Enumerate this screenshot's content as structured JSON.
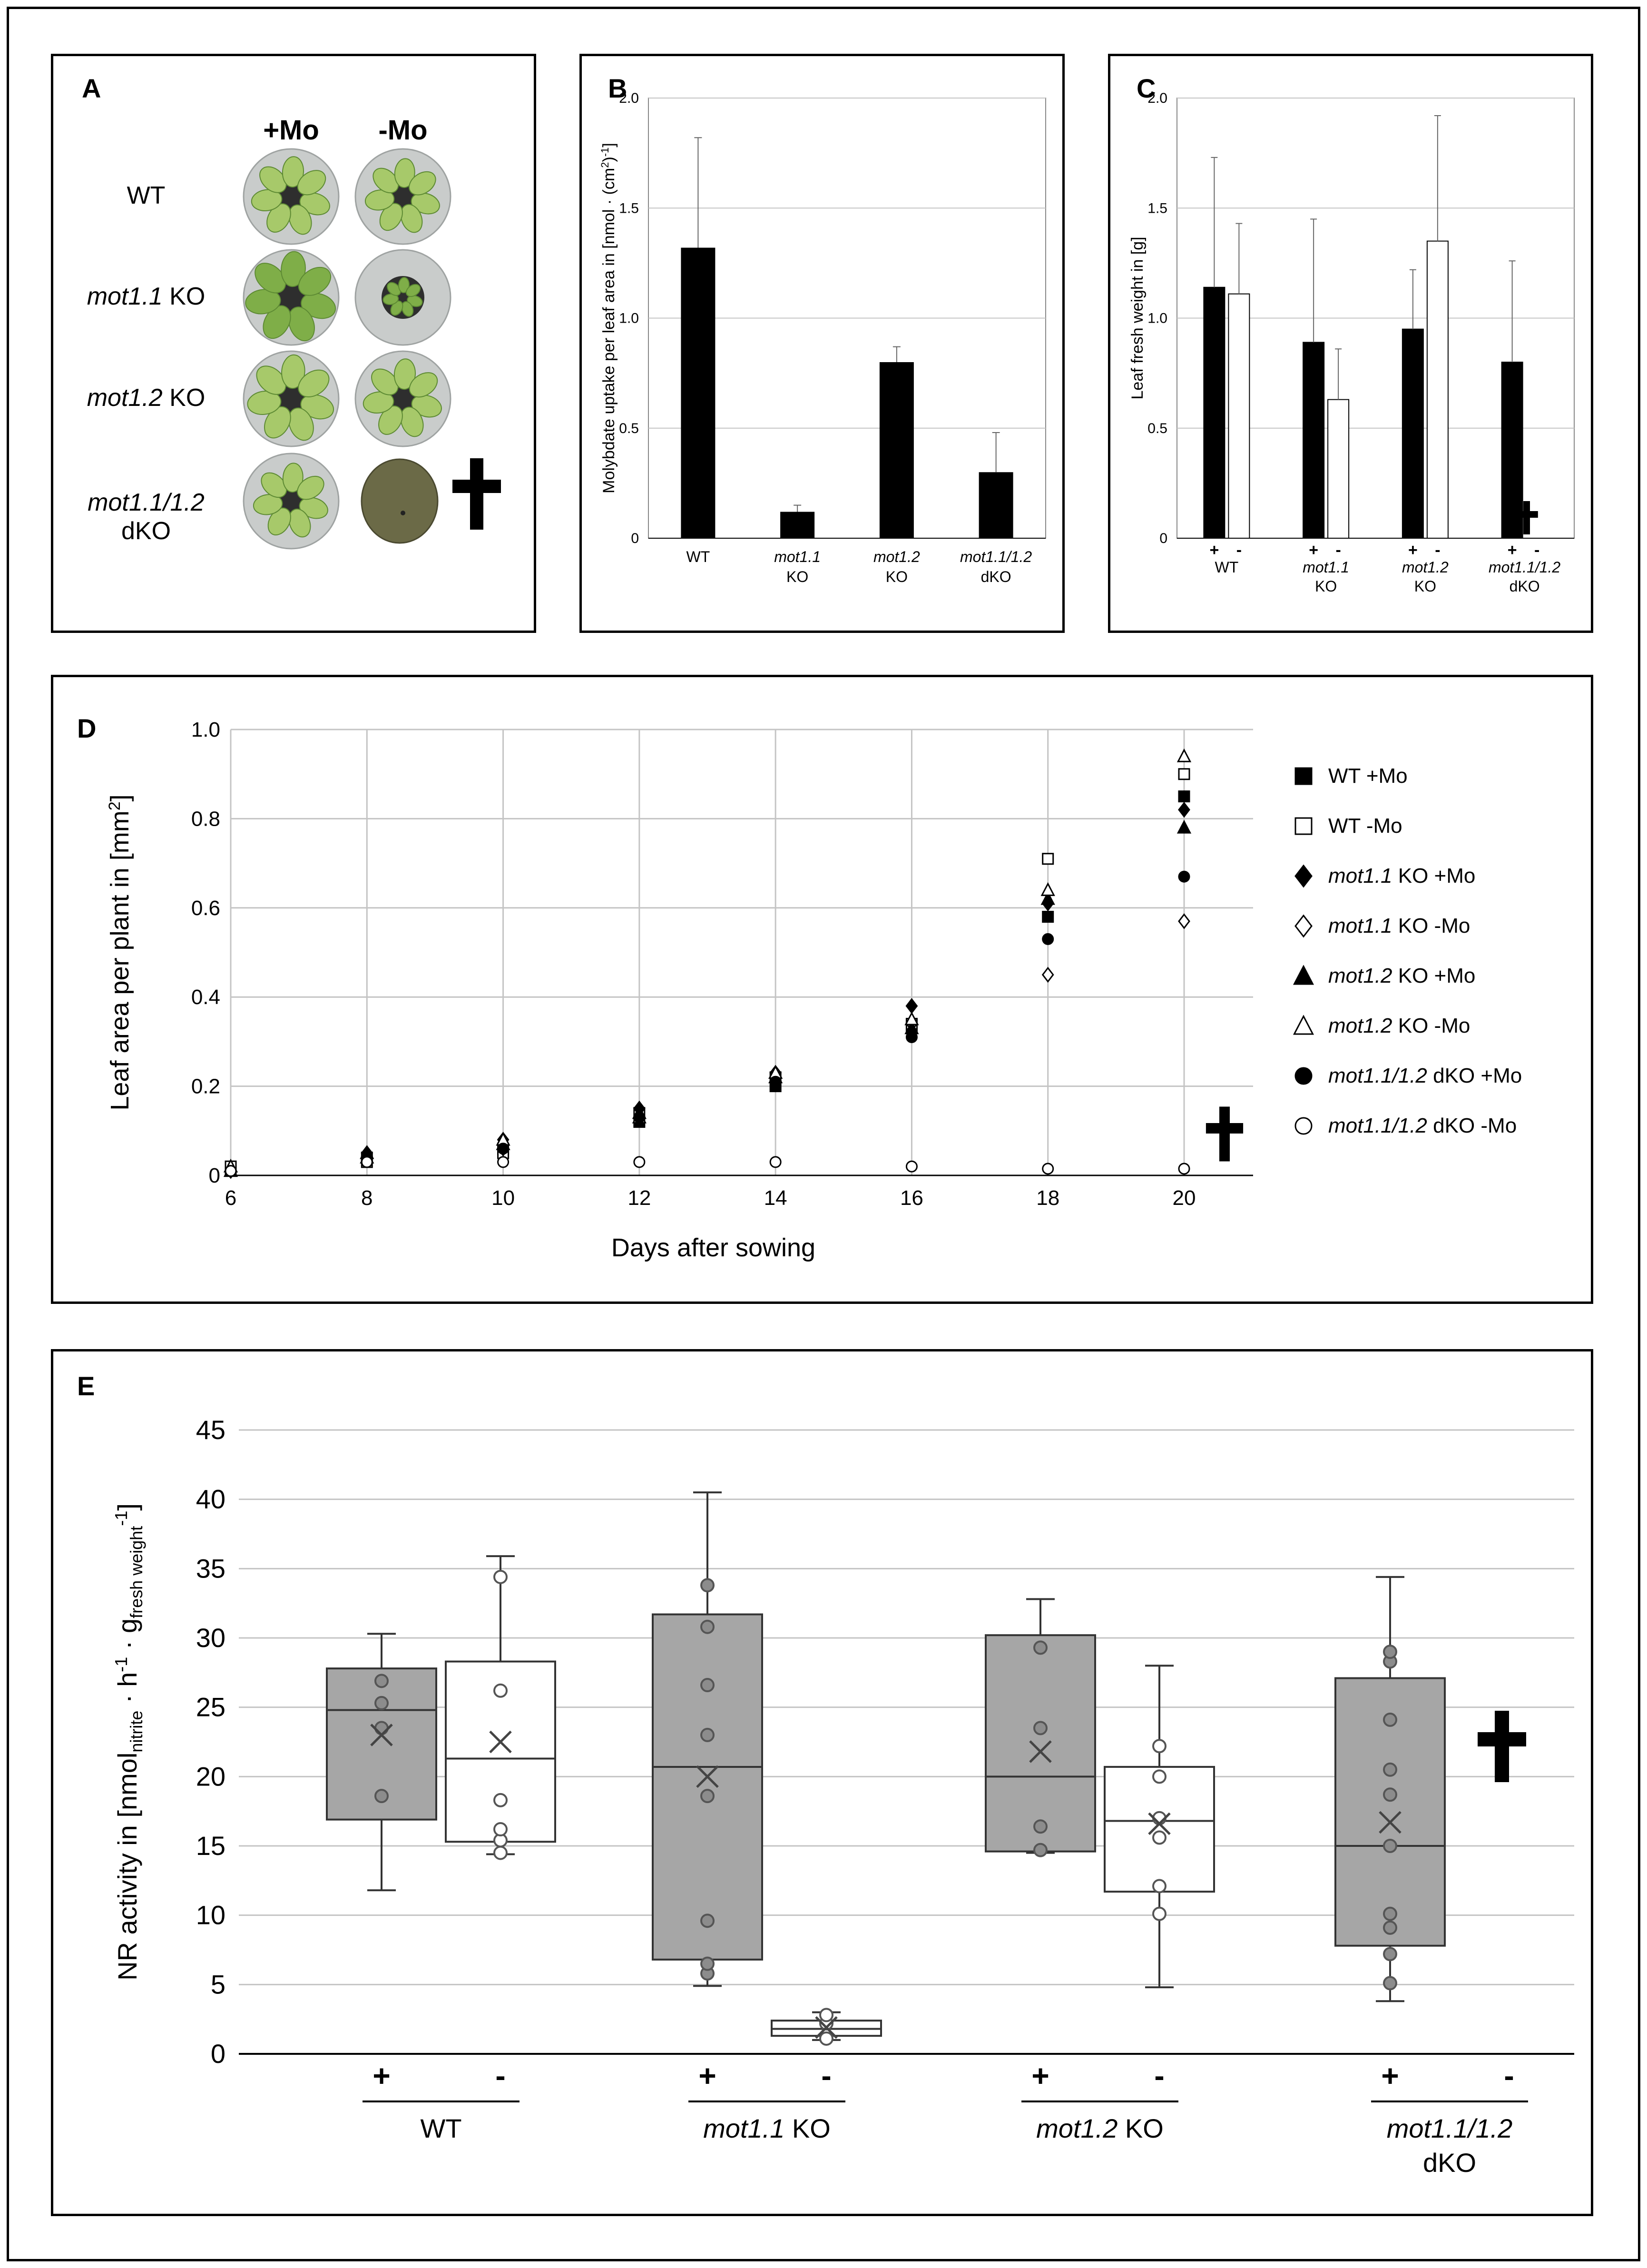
{
  "panels": {
    "A": {
      "label": "A",
      "columns": [
        "+Mo",
        "-Mo"
      ],
      "rows": [
        {
          "italic": "",
          "plain": "WT",
          "second": ""
        },
        {
          "italic": "mot1.1",
          "plain": " KO",
          "second": ""
        },
        {
          "italic": "mot1.2",
          "plain": " KO",
          "second": ""
        },
        {
          "italic": "mot1.1/1.2",
          "plain": "",
          "second": "dKO"
        }
      ],
      "dead_symbol": "✝"
    },
    "B": {
      "label": "B"
    },
    "C": {
      "label": "C"
    },
    "D": {
      "label": "D"
    },
    "E": {
      "label": "E"
    }
  },
  "chart_data": [
    {
      "id": "B",
      "type": "bar",
      "ylabel_main": "Molybdate uptake per leaf area in [nmol · (cm",
      "ylabel_sup1": "2",
      "ylabel_mid": ")",
      "ylabel_sup2": "-1",
      "ylabel_end": "]",
      "ylim": [
        0,
        2.0
      ],
      "yticks": [
        "0",
        "0.5",
        "1.0",
        "1.5",
        "2.0"
      ],
      "categories": [
        {
          "line1": "WT",
          "line1_italic": false,
          "line2": ""
        },
        {
          "line1": "mot1.1",
          "line1_italic": true,
          "line2": "KO"
        },
        {
          "line1": "mot1.2",
          "line1_italic": true,
          "line2": "KO"
        },
        {
          "line1": "mot1.1/1.2",
          "line1_italic": true,
          "line2": "dKO"
        }
      ],
      "values": [
        1.32,
        0.12,
        0.8,
        0.3
      ],
      "errors": [
        0.5,
        0.03,
        0.07,
        0.18
      ]
    },
    {
      "id": "C",
      "type": "bar",
      "ylabel": "Leaf fresh weight in [g]",
      "ylim": [
        0,
        2.0
      ],
      "yticks": [
        "0",
        "0.5",
        "1.0",
        "1.5",
        "2.0"
      ],
      "categories": [
        {
          "line1": "WT",
          "line1_italic": false,
          "line2": ""
        },
        {
          "line1": "mot1.1",
          "line1_italic": true,
          "line2": "KO"
        },
        {
          "line1": "mot1.2",
          "line1_italic": true,
          "line2": "KO"
        },
        {
          "line1": "mot1.1/1.2",
          "line1_italic": true,
          "line2": "dKO"
        }
      ],
      "sign_labels": [
        "+",
        "-"
      ],
      "series": [
        {
          "name": "+Mo",
          "color": "#000000",
          "values": [
            1.14,
            0.89,
            0.95,
            0.8
          ],
          "errors": [
            0.59,
            0.56,
            0.27,
            0.46
          ]
        },
        {
          "name": "-Mo",
          "color": "#ffffff",
          "values": [
            1.11,
            0.63,
            1.35,
            null
          ],
          "errors": [
            0.32,
            0.23,
            0.57,
            null
          ]
        }
      ],
      "dead_symbol": "✝"
    },
    {
      "id": "D",
      "type": "scatter",
      "ylabel_main": "Leaf area per plant in [mm",
      "ylabel_sup": "2",
      "ylabel_end": "]",
      "xlabel": "Days after sowing",
      "x": [
        6,
        8,
        10,
        12,
        14,
        16,
        18,
        20
      ],
      "xticks": [
        "6",
        "8",
        "10",
        "12",
        "14",
        "16",
        "18",
        "20"
      ],
      "ylim": [
        0,
        1.0
      ],
      "yticks": [
        "0",
        "0.2",
        "0.4",
        "0.6",
        "0.8",
        "1.0"
      ],
      "series": [
        {
          "italic": "",
          "name": "WT +Mo",
          "marker": "square",
          "fill": "#000000",
          "values": [
            0.01,
            0.04,
            0.06,
            0.12,
            0.2,
            0.33,
            0.58,
            0.85
          ]
        },
        {
          "italic": "",
          "name": "WT -Mo",
          "marker": "square",
          "fill": "#ffffff",
          "values": [
            0.02,
            0.03,
            0.05,
            0.14,
            0.22,
            0.34,
            0.71,
            0.9
          ]
        },
        {
          "italic": "mot1.1",
          "name": " KO +Mo",
          "marker": "diamond",
          "fill": "#000000",
          "values": [
            0.01,
            0.05,
            0.08,
            0.15,
            0.23,
            0.38,
            0.61,
            0.82
          ]
        },
        {
          "italic": "mot1.1",
          "name": " KO -Mo",
          "marker": "diamond",
          "fill": "#ffffff",
          "values": [
            0.01,
            0.04,
            0.06,
            0.13,
            0.21,
            0.34,
            0.45,
            0.57
          ]
        },
        {
          "italic": "mot1.2",
          "name": " KO +Mo",
          "marker": "triangle",
          "fill": "#000000",
          "values": [
            0.01,
            0.05,
            0.07,
            0.14,
            0.22,
            0.33,
            0.62,
            0.78
          ]
        },
        {
          "italic": "mot1.2",
          "name": " KO -Mo",
          "marker": "triangle",
          "fill": "#ffffff",
          "values": [
            0.02,
            0.04,
            0.08,
            0.13,
            0.23,
            0.35,
            0.64,
            0.94
          ]
        },
        {
          "italic": "mot1.1/1.2",
          "name": " dKO +Mo",
          "marker": "circle",
          "fill": "#000000",
          "values": [
            0.01,
            0.04,
            0.06,
            0.13,
            0.21,
            0.31,
            0.53,
            0.67
          ]
        },
        {
          "italic": "mot1.1/1.2",
          "name": " dKO -Mo",
          "marker": "circle",
          "fill": "#ffffff",
          "values": [
            0.01,
            0.03,
            0.03,
            0.03,
            0.03,
            0.02,
            0.015,
            0.015
          ]
        }
      ],
      "dead_symbol": "✝"
    },
    {
      "id": "E",
      "type": "box",
      "ylabel_main": "NR activity in [nmol",
      "ylabel_sub1": "nitrite",
      "ylabel_mid1": " · h",
      "ylabel_sup1": "-1",
      "ylabel_mid2": " · g",
      "ylabel_sub2": "fresh weight",
      "ylabel_sup2": "-1",
      "ylabel_end": "]",
      "ylim": [
        0,
        45
      ],
      "yticks": [
        "0",
        "5",
        "10",
        "15",
        "20",
        "25",
        "30",
        "35",
        "40",
        "45"
      ],
      "groups": [
        {
          "line1": "WT",
          "line1_italic": false,
          "line1_suffix": "",
          "line2": ""
        },
        {
          "line1": "mot1.1",
          "line1_italic": true,
          "line1_suffix": " KO",
          "line2": ""
        },
        {
          "line1": "mot1.2",
          "line1_italic": true,
          "line1_suffix": " KO",
          "line2": ""
        },
        {
          "line1": "mot1.1/1.2",
          "line1_italic": true,
          "line1_suffix": "",
          "line2": "dKO"
        }
      ],
      "sign_labels": [
        "+",
        "-"
      ],
      "boxes": [
        {
          "group": 0,
          "sign": "+",
          "fill": "#a6a6a6",
          "min": 11.8,
          "q1": 16.9,
          "median": 24.8,
          "q3": 27.8,
          "max": 30.3,
          "mean": 23.0,
          "points": [
            18.6,
            23.5,
            25.3,
            26.9
          ]
        },
        {
          "group": 0,
          "sign": "-",
          "fill": "#ffffff",
          "min": 14.4,
          "q1": 15.3,
          "median": 21.3,
          "q3": 28.3,
          "max": 35.9,
          "mean": 22.5,
          "points": [
            14.5,
            15.4,
            16.2,
            18.3,
            26.2,
            34.4
          ]
        },
        {
          "group": 1,
          "sign": "+",
          "fill": "#a6a6a6",
          "min": 4.9,
          "q1": 6.8,
          "median": 20.7,
          "q3": 31.7,
          "max": 40.5,
          "mean": 20.0,
          "points": [
            5.8,
            6.5,
            9.6,
            18.6,
            23.0,
            26.6,
            30.8,
            33.8
          ]
        },
        {
          "group": 1,
          "sign": "-",
          "fill": "#ffffff",
          "min": 1.0,
          "q1": 1.3,
          "median": 1.8,
          "q3": 2.4,
          "max": 3.0,
          "mean": 1.9,
          "points": [
            1.1,
            2.2,
            2.8
          ]
        },
        {
          "group": 2,
          "sign": "+",
          "fill": "#a6a6a6",
          "min": 14.5,
          "q1": 14.6,
          "median": 20.0,
          "q3": 30.2,
          "max": 32.8,
          "mean": 21.8,
          "points": [
            14.7,
            16.4,
            23.5,
            29.3
          ]
        },
        {
          "group": 2,
          "sign": "-",
          "fill": "#ffffff",
          "min": 4.8,
          "q1": 11.7,
          "median": 16.8,
          "q3": 20.7,
          "max": 28.0,
          "mean": 16.6,
          "points": [
            10.1,
            12.1,
            15.6,
            17.0,
            20.0,
            22.2
          ]
        },
        {
          "group": 3,
          "sign": "+",
          "fill": "#a6a6a6",
          "min": 3.8,
          "q1": 7.8,
          "median": 15.0,
          "q3": 27.1,
          "max": 34.4,
          "mean": 16.7,
          "points": [
            5.1,
            7.2,
            9.1,
            10.1,
            15.0,
            18.7,
            20.5,
            24.1,
            28.3,
            29.0
          ]
        }
      ],
      "dead_symbol": "✝"
    }
  ]
}
